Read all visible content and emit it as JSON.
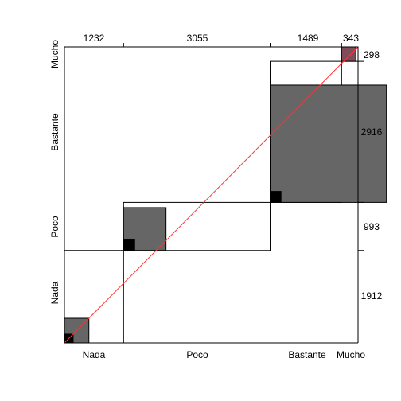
{
  "chart_data": {
    "type": "agreement-plot",
    "categories": [
      "Nada",
      "Poco",
      "Bastante",
      "Mucho"
    ],
    "col_totals": [
      1232,
      3055,
      1489,
      343
    ],
    "row_totals": [
      1912,
      993,
      2916,
      298
    ],
    "col_total_labels": [
      "1232",
      "3055",
      "1489",
      "343"
    ],
    "row_total_labels": [
      "1912",
      "993",
      "2916",
      "298"
    ],
    "diagonal_counts": [
      510,
      885,
      2425,
      298
    ],
    "full_agreement": [
      190,
      240,
      235,
      298
    ],
    "colors": {
      "partial": "#666666",
      "full": "#000000",
      "diagonal_line": "#ff3333",
      "last_cell": "#7f4c5a"
    }
  }
}
